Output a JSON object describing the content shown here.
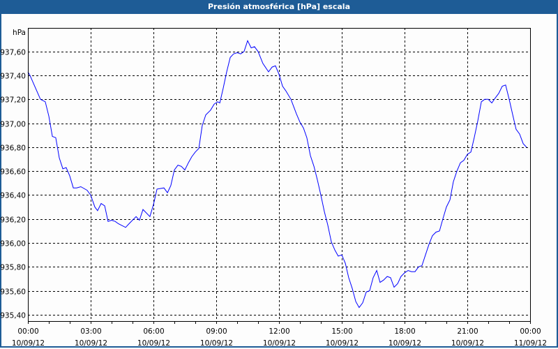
{
  "window": {
    "title": "Presión atmosférica [hPa] escala",
    "title_bar_color": "#1e5c96"
  },
  "chart_data": {
    "type": "line",
    "title": "Presión atmosférica [hPa] escala",
    "ylabel": "hPa",
    "xlabel": "",
    "ylim": [
      935.347,
      937.797
    ],
    "xlim_hours": [
      0,
      24
    ],
    "grid": true,
    "line_color": "#0000ff",
    "y_ticks": [
      {
        "value": 937.6,
        "label": "937,60"
      },
      {
        "value": 937.4,
        "label": "937,40"
      },
      {
        "value": 937.2,
        "label": "937,20"
      },
      {
        "value": 937.0,
        "label": "937,00"
      },
      {
        "value": 936.8,
        "label": "936,80"
      },
      {
        "value": 936.6,
        "label": "936,60"
      },
      {
        "value": 936.4,
        "label": "936,40"
      },
      {
        "value": 936.2,
        "label": "936,20"
      },
      {
        "value": 936.0,
        "label": "936,00"
      },
      {
        "value": 935.8,
        "label": "935,80"
      },
      {
        "value": 935.6,
        "label": "935,60"
      },
      {
        "value": 935.4,
        "label": "935,40"
      }
    ],
    "x_ticks": [
      {
        "hours": 0,
        "time": "00:00",
        "date": "10/09/12"
      },
      {
        "hours": 3,
        "time": "03:00",
        "date": "10/09/12"
      },
      {
        "hours": 6,
        "time": "06:00",
        "date": "10/09/12"
      },
      {
        "hours": 9,
        "time": "09:00",
        "date": "10/09/12"
      },
      {
        "hours": 12,
        "time": "12:00",
        "date": "10/09/12"
      },
      {
        "hours": 15,
        "time": "15:00",
        "date": "10/09/12"
      },
      {
        "hours": 18,
        "time": "18:00",
        "date": "10/09/12"
      },
      {
        "hours": 21,
        "time": "21:00",
        "date": "10/09/12"
      },
      {
        "hours": 24,
        "time": "00:00",
        "date": "11/09/12"
      }
    ],
    "series": [
      {
        "name": "Presión atmosférica",
        "points": [
          [
            0,
            937.43
          ],
          [
            0.1,
            937.4
          ],
          [
            0.6,
            937.2
          ],
          [
            0.83,
            937.18
          ],
          [
            1.0,
            937.06
          ],
          [
            1.17,
            936.89
          ],
          [
            1.33,
            936.88
          ],
          [
            1.5,
            936.71
          ],
          [
            1.67,
            936.62
          ],
          [
            1.83,
            936.63
          ],
          [
            2.0,
            936.56
          ],
          [
            2.17,
            936.46
          ],
          [
            2.33,
            936.46
          ],
          [
            2.53,
            936.47
          ],
          [
            2.83,
            936.44
          ],
          [
            3.0,
            936.4
          ],
          [
            3.2,
            936.3
          ],
          [
            3.33,
            936.27
          ],
          [
            3.5,
            936.33
          ],
          [
            3.67,
            936.31
          ],
          [
            3.83,
            936.18
          ],
          [
            4.0,
            936.19
          ],
          [
            4.17,
            936.18
          ],
          [
            4.33,
            936.16
          ],
          [
            4.67,
            936.13
          ],
          [
            4.83,
            936.16
          ],
          [
            5.17,
            936.22
          ],
          [
            5.33,
            936.19
          ],
          [
            5.5,
            936.28
          ],
          [
            5.83,
            936.22
          ],
          [
            6.0,
            936.32
          ],
          [
            6.17,
            936.45
          ],
          [
            6.5,
            936.46
          ],
          [
            6.67,
            936.42
          ],
          [
            6.83,
            936.48
          ],
          [
            7.0,
            936.61
          ],
          [
            7.17,
            936.65
          ],
          [
            7.33,
            936.64
          ],
          [
            7.5,
            936.61
          ],
          [
            7.67,
            936.67
          ],
          [
            7.83,
            936.72
          ],
          [
            8.0,
            936.76
          ],
          [
            8.17,
            936.79
          ],
          [
            8.33,
            936.98
          ],
          [
            8.5,
            937.07
          ],
          [
            8.73,
            937.11
          ],
          [
            8.9,
            937.16
          ],
          [
            9.07,
            937.18
          ],
          [
            9.17,
            937.17
          ],
          [
            9.33,
            937.29
          ],
          [
            9.5,
            937.43
          ],
          [
            9.67,
            937.55
          ],
          [
            9.83,
            937.58
          ],
          [
            10.0,
            937.59
          ],
          [
            10.17,
            937.58
          ],
          [
            10.33,
            937.6
          ],
          [
            10.5,
            937.69
          ],
          [
            10.67,
            937.63
          ],
          [
            10.83,
            937.64
          ],
          [
            11.0,
            937.6
          ],
          [
            11.23,
            937.5
          ],
          [
            11.5,
            937.43
          ],
          [
            11.67,
            937.47
          ],
          [
            11.83,
            937.48
          ],
          [
            12.0,
            937.41
          ],
          [
            12.17,
            937.31
          ],
          [
            12.33,
            937.27
          ],
          [
            12.57,
            937.2
          ],
          [
            12.83,
            937.08
          ],
          [
            13.0,
            937.01
          ],
          [
            13.17,
            936.96
          ],
          [
            13.33,
            936.88
          ],
          [
            13.5,
            936.73
          ],
          [
            13.67,
            936.64
          ],
          [
            13.83,
            936.53
          ],
          [
            14.0,
            936.4
          ],
          [
            14.17,
            936.26
          ],
          [
            14.33,
            936.15
          ],
          [
            14.5,
            936.01
          ],
          [
            14.67,
            935.94
          ],
          [
            14.83,
            935.89
          ],
          [
            15.0,
            935.9
          ],
          [
            15.17,
            935.83
          ],
          [
            15.33,
            935.71
          ],
          [
            15.5,
            935.62
          ],
          [
            15.67,
            935.51
          ],
          [
            15.83,
            935.46
          ],
          [
            16.0,
            935.5
          ],
          [
            16.17,
            935.59
          ],
          [
            16.33,
            935.6
          ],
          [
            16.5,
            935.71
          ],
          [
            16.67,
            935.77
          ],
          [
            16.83,
            935.67
          ],
          [
            17.0,
            935.69
          ],
          [
            17.17,
            935.72
          ],
          [
            17.33,
            935.71
          ],
          [
            17.5,
            935.63
          ],
          [
            17.67,
            935.66
          ],
          [
            17.83,
            935.72
          ],
          [
            18.0,
            935.75
          ],
          [
            18.17,
            935.77
          ],
          [
            18.33,
            935.76
          ],
          [
            18.5,
            935.76
          ],
          [
            18.67,
            935.8
          ],
          [
            18.83,
            935.81
          ],
          [
            19.0,
            935.9
          ],
          [
            19.17,
            935.99
          ],
          [
            19.33,
            936.06
          ],
          [
            19.5,
            936.09
          ],
          [
            19.67,
            936.1
          ],
          [
            19.83,
            936.2
          ],
          [
            20.0,
            936.3
          ],
          [
            20.17,
            936.36
          ],
          [
            20.33,
            936.51
          ],
          [
            20.5,
            936.6
          ],
          [
            20.67,
            936.67
          ],
          [
            20.83,
            936.69
          ],
          [
            21.0,
            936.74
          ],
          [
            21.17,
            936.76
          ],
          [
            21.33,
            936.88
          ],
          [
            21.5,
            937.02
          ],
          [
            21.67,
            937.18
          ],
          [
            21.83,
            937.2
          ],
          [
            22.0,
            937.2
          ],
          [
            22.17,
            937.17
          ],
          [
            22.33,
            937.21
          ],
          [
            22.5,
            937.25
          ],
          [
            22.67,
            937.31
          ],
          [
            22.83,
            937.32
          ],
          [
            23.0,
            937.2
          ],
          [
            23.17,
            937.07
          ],
          [
            23.33,
            936.95
          ],
          [
            23.5,
            936.91
          ],
          [
            23.67,
            936.83
          ],
          [
            23.83,
            936.8
          ]
        ]
      }
    ]
  }
}
